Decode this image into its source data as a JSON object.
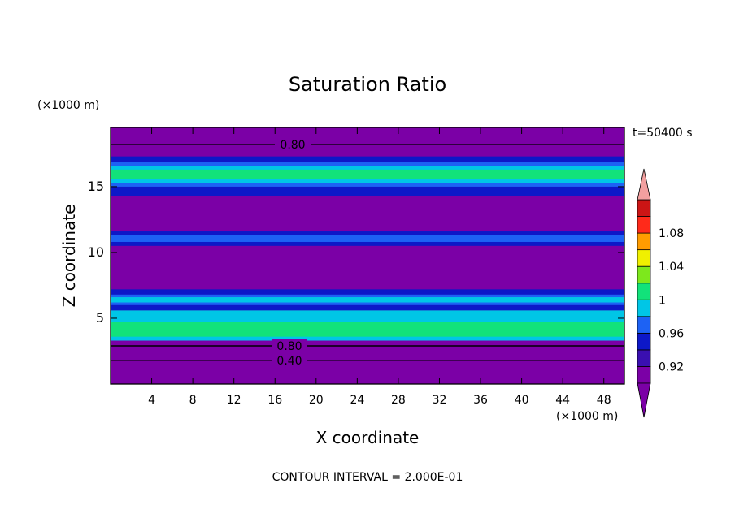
{
  "chart_data": {
    "type": "heatmap",
    "title": "Saturation Ratio",
    "xlabel": "X coordinate",
    "ylabel": "Z coordinate",
    "x_unit": "(×1000 m)",
    "y_unit": "(×1000 m)",
    "time_label": "t=50400 s",
    "footer": "CONTOUR INTERVAL = 2.000E-01",
    "xlim": [
      0,
      50
    ],
    "ylim": [
      0,
      19.5
    ],
    "x_ticks": [
      4,
      8,
      12,
      16,
      20,
      24,
      28,
      32,
      36,
      40,
      44,
      48
    ],
    "y_ticks": [
      5,
      10,
      15
    ],
    "contour_lines": [
      {
        "label": "0.80",
        "z": 18.2
      },
      {
        "label": "0.80",
        "z": 2.9
      },
      {
        "label": "0.40",
        "z": 1.8
      }
    ],
    "colorbar": {
      "levels": [
        0.9,
        0.92,
        0.94,
        0.96,
        0.98,
        1.0,
        1.02,
        1.04,
        1.06,
        1.08,
        1.1
      ],
      "tick_labels": [
        "0.92",
        "0.96",
        "1",
        "1.04",
        "1.08"
      ],
      "tick_values": [
        0.92,
        0.96,
        1.0,
        1.04,
        1.08
      ],
      "colors": [
        "#7b00a6",
        "#3a0fb0",
        "#0d18c8",
        "#1d62f4",
        "#00c6e6",
        "#12e27a",
        "#7de81c",
        "#f0f000",
        "#ff9c00",
        "#ff2a1a",
        "#cc1515"
      ],
      "under_color": "#7b00a6",
      "over_color": "#f2a0a0"
    },
    "bands": [
      {
        "z0": 0.0,
        "z1": 18.0,
        "level": 0.9
      },
      {
        "z0": 3.3,
        "z1": 5.6,
        "level": 0.98
      },
      {
        "z0": 3.6,
        "z1": 4.7,
        "level": 1.0
      },
      {
        "z0": 5.6,
        "z1": 7.2,
        "level": 0.94
      },
      {
        "z0": 6.0,
        "z1": 6.8,
        "level": 0.96
      },
      {
        "z0": 6.2,
        "z1": 6.6,
        "level": 0.98
      },
      {
        "z0": 10.5,
        "z1": 11.6,
        "level": 0.94
      },
      {
        "z0": 10.8,
        "z1": 11.3,
        "level": 0.96
      },
      {
        "z0": 14.3,
        "z1": 17.3,
        "level": 0.94
      },
      {
        "z0": 15.0,
        "z1": 16.9,
        "level": 0.96
      },
      {
        "z0": 15.3,
        "z1": 16.6,
        "level": 0.98
      },
      {
        "z0": 15.6,
        "z1": 16.3,
        "level": 1.0
      }
    ]
  }
}
